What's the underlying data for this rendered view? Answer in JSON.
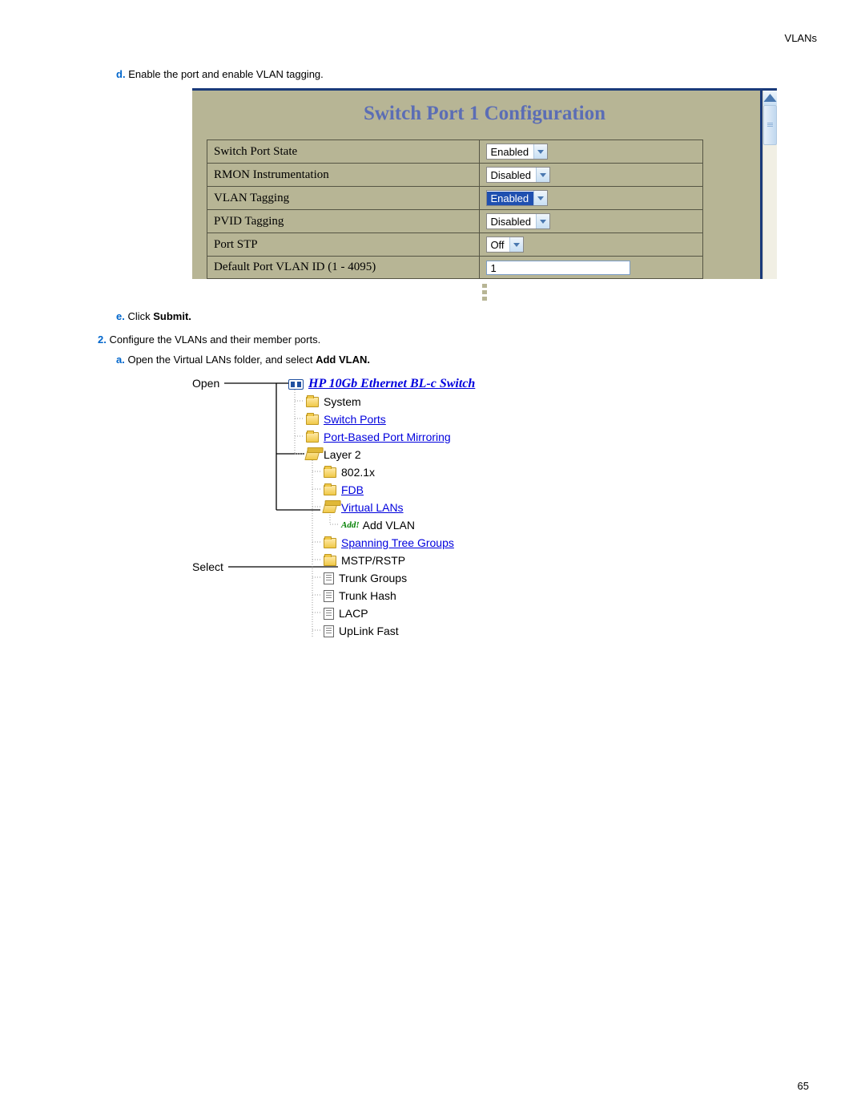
{
  "header": {
    "section": "VLANs"
  },
  "page_number": "65",
  "instructions": {
    "d": {
      "letter": "d.",
      "text": "Enable the port and enable VLAN tagging."
    },
    "e": {
      "letter": "e.",
      "text_before": "Click ",
      "bold": "Submit."
    },
    "n2": {
      "number": "2.",
      "text": "Configure the VLANs and their member ports."
    },
    "a": {
      "letter": "a.",
      "text_before": "Open the Virtual LANs folder, and select ",
      "bold": "Add VLAN."
    }
  },
  "screenshot1": {
    "title": "Switch Port 1 Configuration",
    "rows": [
      {
        "label": "Switch Port State",
        "value": "Enabled",
        "type": "select",
        "highlighted": false
      },
      {
        "label": "RMON Instrumentation",
        "value": "Disabled",
        "type": "select",
        "highlighted": false
      },
      {
        "label": "VLAN Tagging",
        "value": "Enabled",
        "type": "select",
        "highlighted": true
      },
      {
        "label": "PVID Tagging",
        "value": "Disabled",
        "type": "select",
        "highlighted": false
      },
      {
        "label": "Port STP",
        "value": "Off",
        "type": "select",
        "highlighted": false,
        "narrow": true
      },
      {
        "label": "Default Port VLAN ID (1 - 4095)",
        "value": "1",
        "type": "input"
      }
    ]
  },
  "screenshot2": {
    "callout_open": "Open",
    "callout_select": "Select",
    "root": "HP 10Gb Ethernet BL-c Switch",
    "items": [
      {
        "level": 1,
        "icon": "folder-closed",
        "text": "System",
        "link": false
      },
      {
        "level": 1,
        "icon": "folder-closed",
        "text": "Switch Ports",
        "link": true
      },
      {
        "level": 1,
        "icon": "folder-closed",
        "text": "Port-Based Port Mirroring",
        "link": true
      },
      {
        "level": 1,
        "icon": "folder-open",
        "text": "Layer 2",
        "link": false
      },
      {
        "level": 2,
        "icon": "folder-closed",
        "text": "802.1x",
        "link": false
      },
      {
        "level": 2,
        "icon": "folder-closed",
        "text": "FDB",
        "link": true
      },
      {
        "level": 2,
        "icon": "folder-open",
        "text": "Virtual LANs",
        "link": true
      },
      {
        "level": 3,
        "icon": "add",
        "text": "Add VLAN",
        "link": false,
        "add_label": "Add!"
      },
      {
        "level": 2,
        "icon": "folder-closed",
        "text": "Spanning Tree Groups",
        "link": true
      },
      {
        "level": 2,
        "icon": "folder-closed",
        "text": "MSTP/RSTP",
        "link": false
      },
      {
        "level": 2,
        "icon": "doc",
        "text": "Trunk Groups",
        "link": false
      },
      {
        "level": 2,
        "icon": "doc",
        "text": "Trunk Hash",
        "link": false
      },
      {
        "level": 2,
        "icon": "doc",
        "text": "LACP",
        "link": false
      },
      {
        "level": 2,
        "icon": "doc",
        "text": "UpLink Fast",
        "link": false
      }
    ]
  }
}
